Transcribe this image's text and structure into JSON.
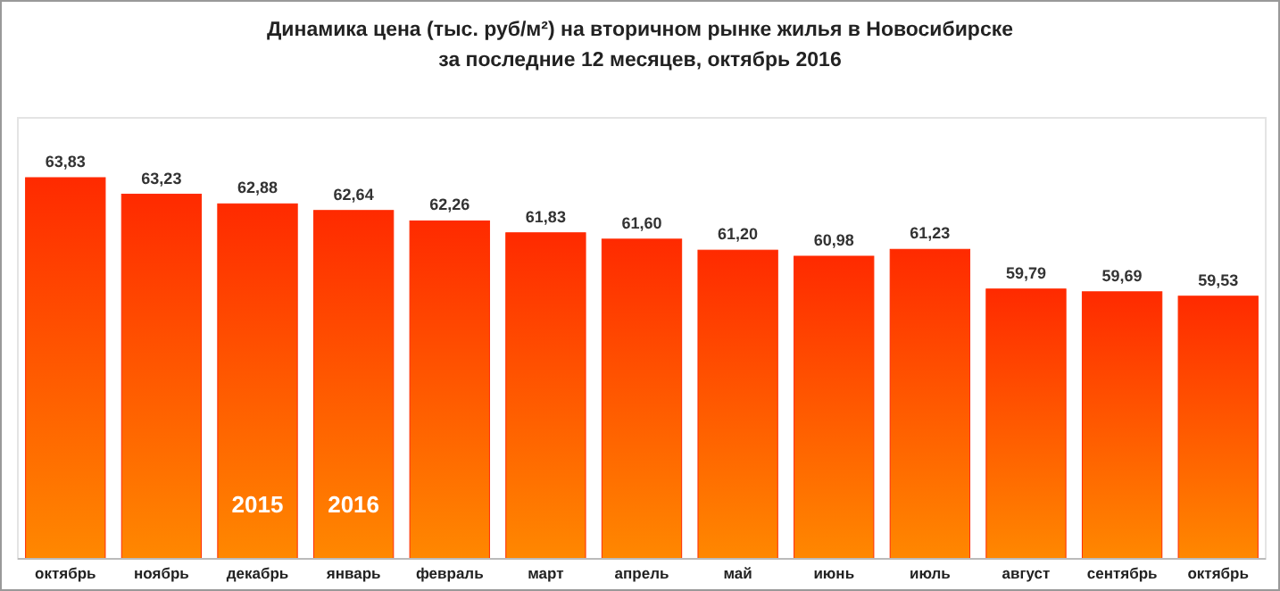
{
  "chart_data": {
    "type": "bar",
    "title": "Динамика цена (тыс. руб/м²) на вторичном рынке жилья в Новосибирске",
    "subtitle": "за последние 12 месяцев, октябрь 2016",
    "categories": [
      "октябрь",
      "ноябрь",
      "декабрь",
      "январь",
      "февраль",
      "март",
      "апрель",
      "май",
      "июнь",
      "июль",
      "август",
      "сентябрь",
      "октябрь"
    ],
    "values": [
      63.83,
      63.23,
      62.88,
      62.64,
      62.26,
      61.83,
      61.6,
      61.2,
      60.98,
      61.23,
      59.79,
      59.69,
      59.53
    ],
    "value_labels": [
      "63,83",
      "63,23",
      "62,88",
      "62,64",
      "62,26",
      "61,83",
      "61,60",
      "61,20",
      "60,98",
      "61,23",
      "59,79",
      "59,69",
      "59,53"
    ],
    "color": "#ff2a00",
    "ylim": [
      50,
      66
    ],
    "annotations": [
      "2015",
      "2016"
    ]
  }
}
